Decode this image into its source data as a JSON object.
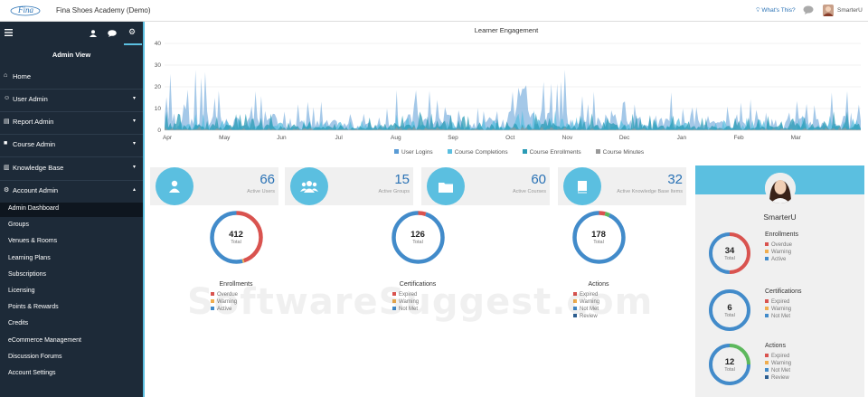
{
  "topbar": {
    "logo_text": "Fina",
    "title": "Fina Shoes Academy (Demo)",
    "whats_this": "What's This?",
    "username": "SmarterU"
  },
  "sidebar": {
    "view_label": "Admin View",
    "menu": [
      {
        "icon": "home-icon",
        "glyph": "⌂",
        "label": "Home",
        "caret": ""
      },
      {
        "icon": "users-icon",
        "glyph": "☺",
        "label": "User Admin",
        "caret": "▾"
      },
      {
        "icon": "report-icon",
        "glyph": "▤",
        "label": "Report Admin",
        "caret": "▾"
      },
      {
        "icon": "folder-icon",
        "glyph": "■",
        "label": "Course Admin",
        "caret": "▾"
      },
      {
        "icon": "book-icon",
        "glyph": "▥",
        "label": "Knowledge Base",
        "caret": "▾"
      },
      {
        "icon": "gear-icon",
        "glyph": "⚙",
        "label": "Account Admin",
        "caret": "▴"
      }
    ],
    "subitems": [
      "Admin Dashboard",
      "Groups",
      "Venues & Rooms",
      "Learning Plans",
      "Subscriptions",
      "Licensing",
      "Points & Rewards",
      "Credits",
      "eCommerce Management",
      "Discussion Forums",
      "Account Settings"
    ]
  },
  "engagement": {
    "title": "Learner Engagement",
    "months": [
      "Apr",
      "May",
      "Jun",
      "Jul",
      "Aug",
      "Sep",
      "Oct",
      "Nov",
      "Dec",
      "Jan",
      "Feb",
      "Mar"
    ],
    "legend": [
      {
        "name": "User Logins",
        "color": "#5a9bd5"
      },
      {
        "name": "Course Completions",
        "color": "#5bbfe0"
      },
      {
        "name": "Course Enrollments",
        "color": "#2a9bb5"
      },
      {
        "name": "Course Minutes",
        "color": "#999999"
      }
    ]
  },
  "chart_data": {
    "type": "area",
    "title": "Learner Engagement",
    "x": [
      "Apr",
      "May",
      "Jun",
      "Jul",
      "Aug",
      "Sep",
      "Oct",
      "Nov",
      "Dec",
      "Jan",
      "Feb",
      "Mar"
    ],
    "ylim": [
      0,
      40
    ],
    "yticks": [
      0,
      10,
      20,
      30,
      40
    ],
    "grid": true,
    "legend_position": "bottom",
    "series": [
      {
        "name": "User Logins",
        "peaks": [
          28,
          18,
          14,
          12,
          22,
          15,
          32,
          18,
          20,
          14,
          16,
          20
        ]
      },
      {
        "name": "Course Completions",
        "peaks": [
          8,
          6,
          5,
          5,
          8,
          6,
          10,
          7,
          7,
          5,
          6,
          8
        ]
      },
      {
        "name": "Course Enrollments",
        "peaks": [
          10,
          8,
          6,
          6,
          9,
          7,
          10,
          8,
          8,
          6,
          7,
          9
        ]
      },
      {
        "name": "Course Minutes",
        "peaks": [
          2,
          1,
          1,
          1,
          2,
          1,
          2,
          1,
          1,
          1,
          1,
          2
        ]
      }
    ]
  },
  "stats": [
    {
      "value": "66",
      "label": "Active Users",
      "icon": "user-icon"
    },
    {
      "value": "15",
      "label": "Active Groups",
      "icon": "group-icon"
    },
    {
      "value": "60",
      "label": "Active Courses",
      "icon": "folder-icon"
    },
    {
      "value": "32",
      "label": "Active Knowledge Base Items",
      "icon": "book-icon"
    }
  ],
  "donuts": [
    {
      "title": "Enrollments",
      "value": "412",
      "total_label": "Total",
      "legend": [
        {
          "name": "Overdue",
          "color": "#d9534f"
        },
        {
          "name": "Warning",
          "color": "#f0ad4e"
        },
        {
          "name": "Active",
          "color": "#428bca"
        }
      ],
      "segments": [
        {
          "color": "#d9534f",
          "frac": 0.45
        },
        {
          "color": "#f0ad4e",
          "frac": 0.01
        },
        {
          "color": "#428bca",
          "frac": 0.54
        }
      ]
    },
    {
      "title": "Certifications",
      "value": "126",
      "total_label": "Total",
      "legend": [
        {
          "name": "Expired",
          "color": "#d9534f"
        },
        {
          "name": "Warning",
          "color": "#f0ad4e"
        },
        {
          "name": "Not Met",
          "color": "#428bca"
        }
      ],
      "segments": [
        {
          "color": "#d9534f",
          "frac": 0.05
        },
        {
          "color": "#428bca",
          "frac": 0.95
        }
      ]
    },
    {
      "title": "Actions",
      "value": "178",
      "total_label": "Total",
      "legend": [
        {
          "name": "Expired",
          "color": "#d9534f"
        },
        {
          "name": "Warning",
          "color": "#f0ad4e"
        },
        {
          "name": "Not Met",
          "color": "#428bca"
        },
        {
          "name": "Review",
          "color": "#2c5d8f"
        }
      ],
      "segments": [
        {
          "color": "#d9534f",
          "frac": 0.04
        },
        {
          "color": "#5cb85c",
          "frac": 0.03
        },
        {
          "color": "#428bca",
          "frac": 0.93
        }
      ]
    }
  ],
  "profile": {
    "name": "SmarterU",
    "donuts": [
      {
        "title": "Enrollments",
        "value": "34",
        "total_label": "Total",
        "legend": [
          {
            "name": "Overdue",
            "color": "#d9534f"
          },
          {
            "name": "Warning",
            "color": "#f0ad4e"
          },
          {
            "name": "Active",
            "color": "#428bca"
          }
        ],
        "segments": [
          {
            "color": "#d9534f",
            "frac": 0.5
          },
          {
            "color": "#428bca",
            "frac": 0.5
          }
        ]
      },
      {
        "title": "Certifications",
        "value": "6",
        "total_label": "Total",
        "legend": [
          {
            "name": "Expired",
            "color": "#d9534f"
          },
          {
            "name": "Warning",
            "color": "#f0ad4e"
          },
          {
            "name": "Not Met",
            "color": "#428bca"
          }
        ],
        "segments": [
          {
            "color": "#428bca",
            "frac": 1.0
          }
        ]
      },
      {
        "title": "Actions",
        "value": "12",
        "total_label": "Total",
        "legend": [
          {
            "name": "Expired",
            "color": "#d9534f"
          },
          {
            "name": "Warning",
            "color": "#f0ad4e"
          },
          {
            "name": "Not Met",
            "color": "#428bca"
          },
          {
            "name": "Review",
            "color": "#2c5d8f"
          }
        ],
        "segments": [
          {
            "color": "#5cb85c",
            "frac": 0.25
          },
          {
            "color": "#428bca",
            "frac": 0.75
          }
        ]
      }
    ]
  },
  "watermark": "SoftwareSuggest.com"
}
